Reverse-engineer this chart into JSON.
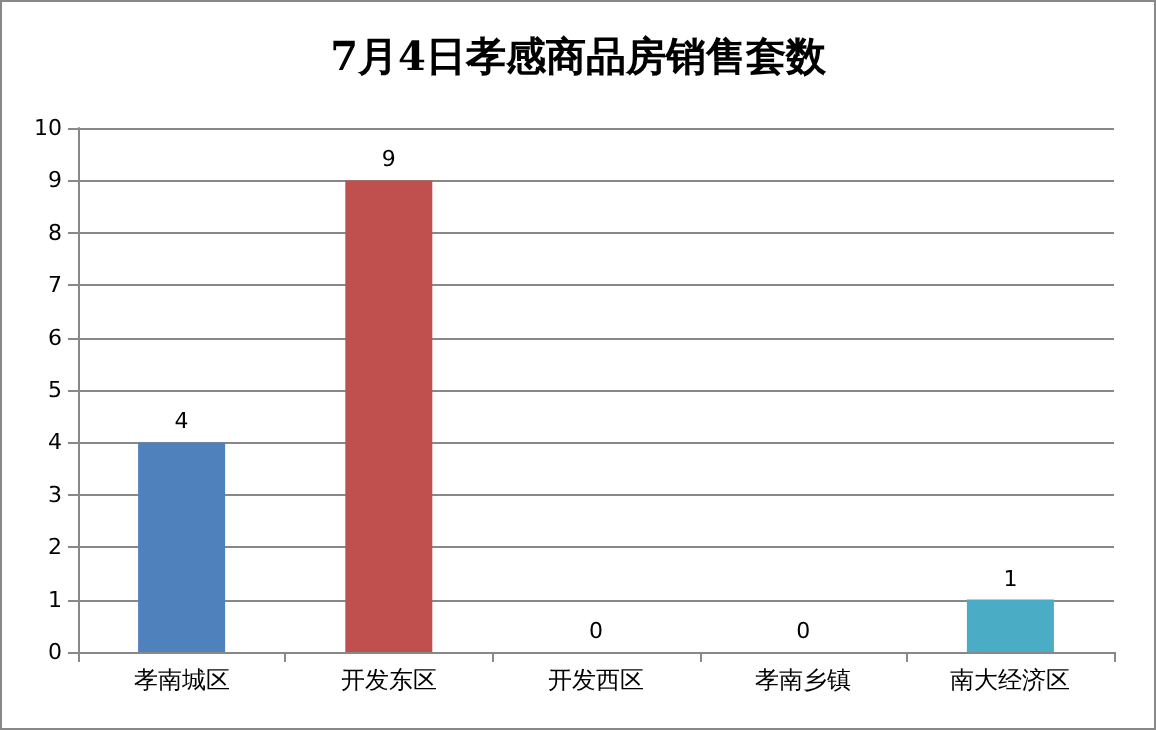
{
  "chart_data": {
    "type": "bar",
    "title": "7月4日孝感商品房销售套数",
    "categories": [
      "孝南城区",
      "开发东区",
      "开发西区",
      "孝南乡镇",
      "南大经济区"
    ],
    "values": [
      4,
      9,
      0,
      0,
      1
    ],
    "colors": [
      "#4f81bd",
      "#c0504d",
      "#9bbb59",
      "#8064a2",
      "#4bacc6"
    ],
    "ylim": [
      0,
      10
    ],
    "yticks": [
      0,
      1,
      2,
      3,
      4,
      5,
      6,
      7,
      8,
      9,
      10
    ],
    "grid": "y",
    "data_labels": true
  }
}
